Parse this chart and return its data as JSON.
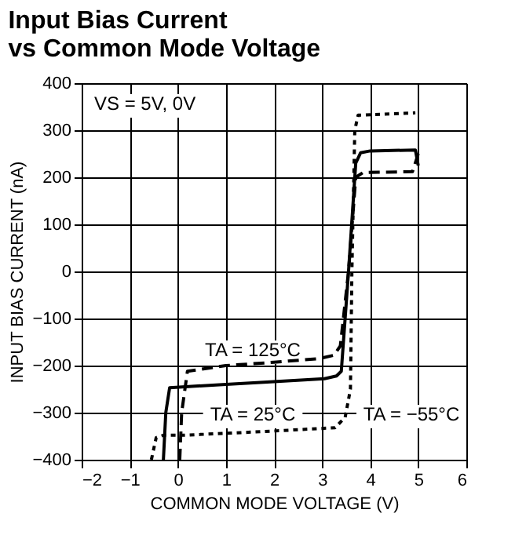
{
  "chart_data": {
    "type": "line",
    "title": "Input Bias Current\nvs Common Mode Voltage",
    "xlabel": "COMMON  MODE VOLTAGE (V)",
    "ylabel": "INPUT BIAS CURRENT (nA)",
    "series": [
      {
        "color": "#000000",
        "line_style": "solid",
        "x": [
          -0.3,
          -0.25,
          -0.17,
          1.0,
          2.0,
          3.05,
          3.3,
          3.4,
          3.55,
          3.7,
          3.8,
          4.0,
          4.94,
          5.0
        ],
        "values": [
          -400,
          -300,
          -247,
          -240,
          -234,
          -228,
          -222,
          -212,
          0,
          230,
          252,
          256,
          258,
          225
        ]
      },
      {
        "color": "#000000",
        "line_style": "dashed",
        "x": [
          0.04,
          0.08,
          0.2,
          1.0,
          2.0,
          2.95,
          3.25,
          3.38,
          3.55,
          3.7,
          3.85,
          4.88,
          5.0
        ],
        "values": [
          -400,
          -300,
          -212,
          -200,
          -193,
          -185,
          -178,
          -158,
          0,
          200,
          210,
          212,
          250
        ]
      },
      {
        "color": "#000000",
        "line_style": "dotted",
        "x": [
          -0.55,
          -0.45,
          -0.3,
          0.1,
          1.0,
          2.0,
          3.27,
          3.48,
          3.59,
          3.62,
          3.68,
          3.75,
          4.94
        ],
        "values": [
          -400,
          -353,
          -348,
          -348,
          -344,
          -339,
          -332,
          -310,
          -250,
          0,
          300,
          332,
          337
        ]
      }
    ],
    "annotations": [
      "VS = 5V, 0V",
      "TA = 125°C",
      "TA = 25°C",
      "TA = −55°C"
    ],
    "xlim": [
      -2,
      6
    ],
    "xticks": [
      -2,
      -1,
      0,
      1,
      2,
      3,
      4,
      5,
      6
    ],
    "ylim": [
      -400,
      400
    ],
    "yticks": [
      -400,
      -300,
      -200,
      -100,
      0,
      100,
      200,
      300,
      400
    ],
    "grid": true
  }
}
